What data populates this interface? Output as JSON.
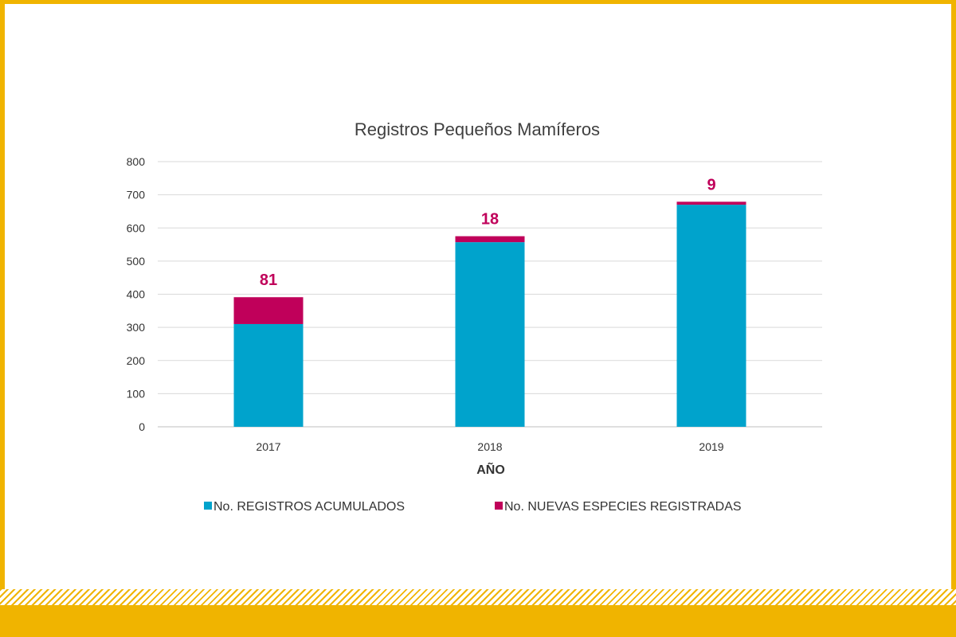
{
  "chart_data": {
    "type": "bar",
    "stacked": true,
    "title": "Registros Pequeños Mamíferos",
    "xlabel": "AÑO",
    "ylabel": "",
    "categories": [
      "2017",
      "2018",
      "2019"
    ],
    "ylim": [
      0,
      800
    ],
    "yticks": [
      0,
      100,
      200,
      300,
      400,
      500,
      600,
      700,
      800
    ],
    "grid": true,
    "legend_position": "bottom",
    "series": [
      {
        "name": "No. REGISTROS ACUMULADOS",
        "values": [
          310,
          557,
          670
        ],
        "color": "#00a3cc"
      },
      {
        "name": "No. NUEVAS ESPECIES REGISTRADAS",
        "values": [
          81,
          18,
          9
        ],
        "color": "#c0005a"
      }
    ],
    "data_labels": [
      "81",
      "18",
      "9"
    ]
  }
}
